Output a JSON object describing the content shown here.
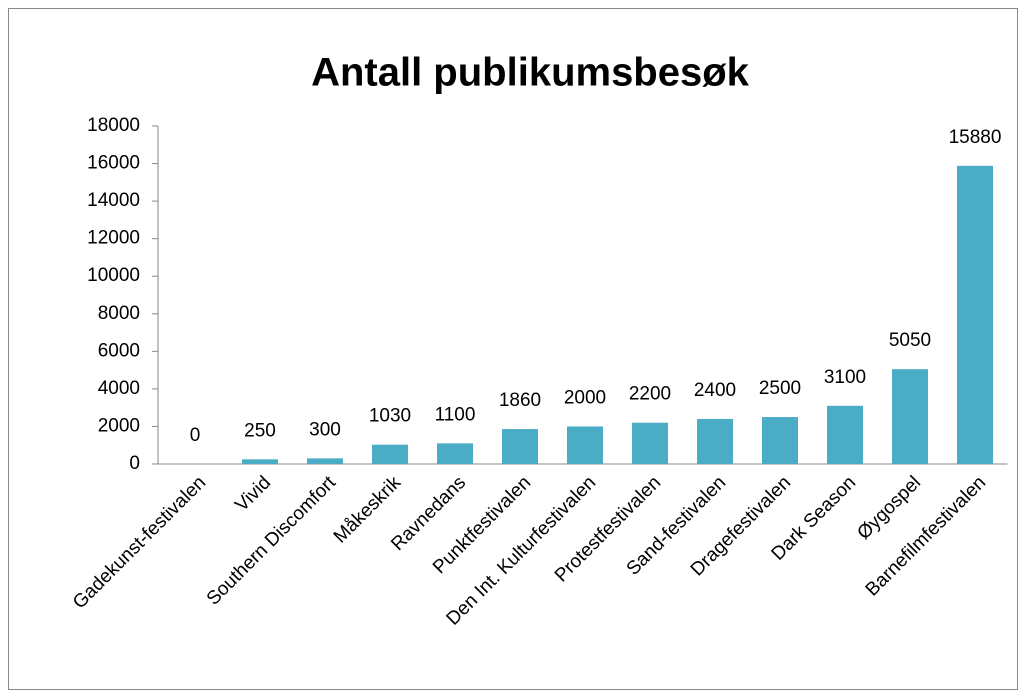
{
  "chart_data": {
    "type": "bar",
    "title": "Antall publikumsbesøk",
    "categories": [
      "Gadekunst-festivalen",
      "Vivid",
      "Southern Discomfort",
      "Måkeskrik",
      "Ravnedans",
      "Punktfestivalen",
      "Den Int. Kulturfestivalen",
      "Protestfestivalen",
      "Sand-festivalen",
      "Dragefestivalen",
      "Dark Season",
      "Øygospel",
      "Barnefilmfestivalen"
    ],
    "values": [
      0,
      250,
      300,
      1030,
      1100,
      1860,
      2000,
      2200,
      2400,
      2500,
      3100,
      5050,
      15880
    ],
    "color": "#4bacc6",
    "ylim": [
      0,
      18000
    ],
    "yticks": [
      0,
      2000,
      4000,
      6000,
      8000,
      10000,
      12000,
      14000,
      16000,
      18000
    ],
    "grid": false
  }
}
